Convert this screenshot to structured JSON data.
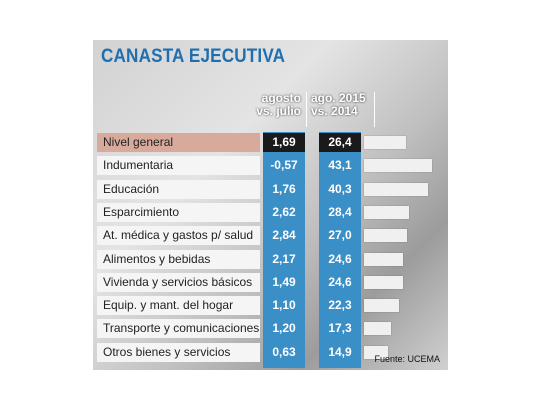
{
  "title": "CANASTA EJECUTIVA",
  "source": "Fuente: UCEMA",
  "chart_data": {
    "type": "table",
    "title": "CANASTA EJECUTIVA",
    "columns": [
      {
        "line1": "agosto",
        "line2": "vs. julio"
      },
      {
        "line1": "ago. 2015",
        "line2": "vs. 2014"
      }
    ],
    "bar_max": 43.1,
    "rows": [
      {
        "label": "Nivel general",
        "m": "1,69",
        "y": "26,4",
        "yv": 26.4
      },
      {
        "label": "Indumentaria",
        "m": "-0,57",
        "y": "43,1",
        "yv": 43.1
      },
      {
        "label": "Educación",
        "m": "1,76",
        "y": "40,3",
        "yv": 40.3
      },
      {
        "label": "Esparcimiento",
        "m": "2,62",
        "y": "28,4",
        "yv": 28.4
      },
      {
        "label": "At. médica y gastos p/ salud",
        "m": "2,84",
        "y": "27,0",
        "yv": 27.0
      },
      {
        "label": "Alimentos y bebidas",
        "m": "2,17",
        "y": "24,6",
        "yv": 24.6
      },
      {
        "label": "Vivienda y servicios básicos",
        "m": "1,49",
        "y": "24,6",
        "yv": 24.6
      },
      {
        "label": "Equip. y mant. del hogar",
        "m": "1,10",
        "y": "22,3",
        "yv": 22.3
      },
      {
        "label": "Transporte y comunicaciones",
        "m": "1,20",
        "y": "17,3",
        "yv": 17.3
      },
      {
        "label": "Otros bienes y servicios",
        "m": "0,63",
        "y": "14,9",
        "yv": 14.9
      }
    ]
  }
}
